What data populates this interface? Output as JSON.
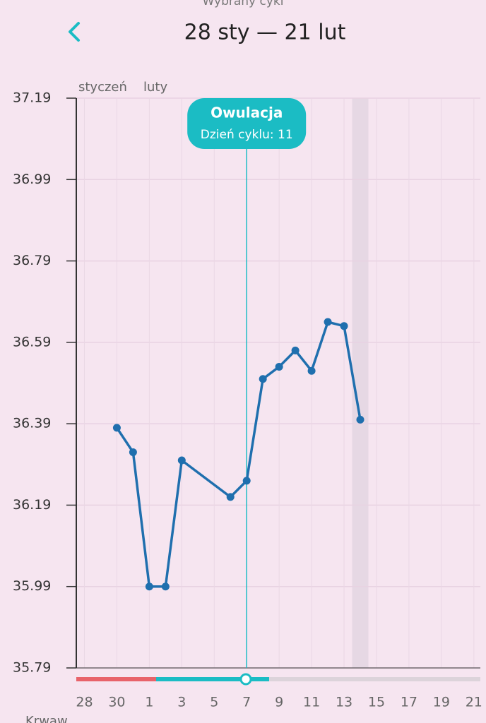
{
  "header": {
    "supertitle": "Wybrany cykl",
    "title": "28 sty — 21 lut"
  },
  "chart_data": {
    "type": "line",
    "months": [
      "styczeń",
      "luty"
    ],
    "x": [
      3,
      4,
      5,
      6,
      7,
      10,
      11,
      12,
      13,
      14,
      15,
      16,
      17,
      18
    ],
    "values": [
      36.38,
      36.32,
      35.99,
      35.99,
      36.3,
      36.21,
      36.25,
      36.5,
      36.53,
      36.57,
      36.52,
      36.64,
      36.63,
      36.4
    ],
    "color": "#1f6fae",
    "xlim": [
      0.5,
      25.4
    ],
    "xticks": [
      {
        "value": 1,
        "label": "28"
      },
      {
        "value": 3,
        "label": "30"
      },
      {
        "value": 5,
        "label": "1"
      },
      {
        "value": 7,
        "label": "3"
      },
      {
        "value": 9,
        "label": "5"
      },
      {
        "value": 11,
        "label": "7"
      },
      {
        "value": 13,
        "label": "9"
      },
      {
        "value": 15,
        "label": "11"
      },
      {
        "value": 17,
        "label": "13"
      },
      {
        "value": 19,
        "label": "15"
      },
      {
        "value": 21,
        "label": "17"
      },
      {
        "value": 23,
        "label": "19"
      },
      {
        "value": 25,
        "label": "21"
      }
    ],
    "ylim": [
      35.79,
      37.19
    ],
    "yticks": [
      35.79,
      35.99,
      36.19,
      36.39,
      36.59,
      36.79,
      36.99,
      37.19
    ],
    "grid": true,
    "annotation": {
      "x": 11,
      "title": "Owulacja",
      "text": "Dzień cyklu: 11"
    },
    "highlight_x": 18
  },
  "footer": {
    "label": "Krwaw"
  }
}
